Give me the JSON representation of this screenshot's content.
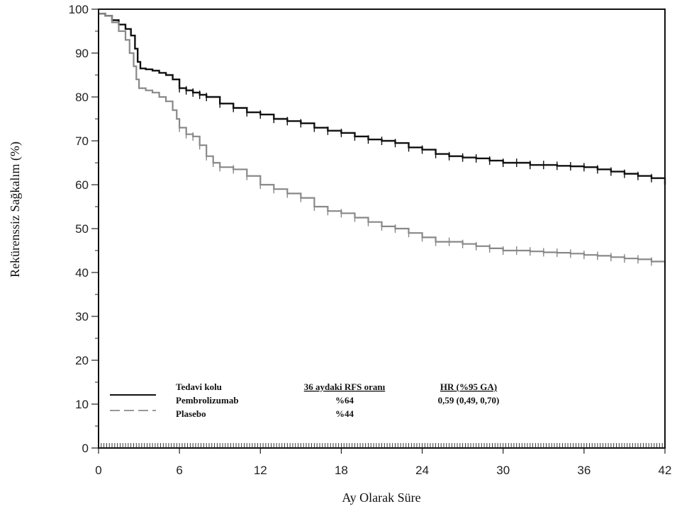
{
  "chart_data": {
    "type": "line",
    "xlabel": "Ay Olarak Süre",
    "ylabel": "Rekürenssiz Sağkalım (%)",
    "xlim": [
      0,
      42
    ],
    "ylim": [
      0,
      100
    ],
    "xticks": [
      0,
      6,
      12,
      18,
      24,
      30,
      36,
      42
    ],
    "yticks": [
      0,
      10,
      20,
      30,
      40,
      50,
      60,
      70,
      80,
      90,
      100
    ],
    "grid": false,
    "legend": {
      "placement": "bottom-left",
      "headers": [
        "Tedavi kolu",
        "36 aydaki RFS oranı",
        "HR (%95 GA)"
      ],
      "rows": [
        {
          "name": "Pembrolizumab",
          "rate": "%64",
          "hr": "0,59 (0,49, 0,70)"
        },
        {
          "name": "Plasebo",
          "rate": "%44",
          "hr": ""
        }
      ]
    },
    "series": [
      {
        "name": "Pembrolizumab",
        "color": "#111111",
        "style": "solid",
        "x": [
          0,
          0.5,
          1,
          1.5,
          2,
          2.4,
          2.7,
          2.9,
          3.1,
          3.5,
          4,
          4.5,
          5,
          5.5,
          6,
          6.5,
          7,
          7.5,
          8,
          9,
          10,
          11,
          12,
          13,
          14,
          15,
          16,
          17,
          18,
          19,
          20,
          21,
          22,
          23,
          24,
          25,
          26,
          27,
          28,
          29,
          30,
          31,
          32,
          33,
          34,
          35,
          36,
          37,
          38,
          39,
          40,
          41,
          42
        ],
        "y": [
          99,
          98.5,
          97.5,
          96.5,
          95.5,
          94,
          91,
          88,
          86.5,
          86.3,
          86,
          85.5,
          85,
          84,
          82,
          81.5,
          81,
          80.5,
          80,
          78.5,
          77.5,
          76.5,
          76,
          75,
          74.5,
          74,
          73,
          72.3,
          71.8,
          71,
          70.3,
          70,
          69.5,
          68.5,
          68,
          67,
          66.5,
          66.2,
          66,
          65.5,
          65,
          65,
          64.5,
          64.5,
          64.3,
          64.2,
          64,
          63.5,
          63,
          62.5,
          62,
          61.5,
          60
        ]
      },
      {
        "name": "Plasebo",
        "color": "#888888",
        "style": "dashed",
        "x": [
          0,
          0.5,
          1,
          1.5,
          2,
          2.3,
          2.6,
          2.8,
          3,
          3.5,
          4,
          4.5,
          5,
          5.5,
          5.8,
          6,
          6.5,
          7,
          7.5,
          8,
          8.5,
          9,
          10,
          11,
          12,
          13,
          14,
          15,
          16,
          17,
          18,
          19,
          20,
          21,
          22,
          23,
          24,
          25,
          26,
          27,
          28,
          29,
          30,
          31,
          32,
          33,
          34,
          35,
          36,
          37,
          38,
          39,
          40,
          41,
          42
        ],
        "y": [
          99,
          98.5,
          97,
          95,
          93,
          90,
          87,
          84,
          82,
          81.5,
          81,
          80,
          79,
          77,
          75,
          73,
          71.5,
          71,
          69,
          66.5,
          65,
          64,
          63.5,
          62,
          60,
          59,
          58,
          57,
          55,
          54,
          53.5,
          52.5,
          51.5,
          50.5,
          50,
          49,
          48,
          47,
          47,
          46.5,
          46,
          45.5,
          45,
          45,
          44.8,
          44.6,
          44.5,
          44.3,
          44,
          43.8,
          43.5,
          43.2,
          43,
          42.5,
          41
        ]
      }
    ]
  }
}
